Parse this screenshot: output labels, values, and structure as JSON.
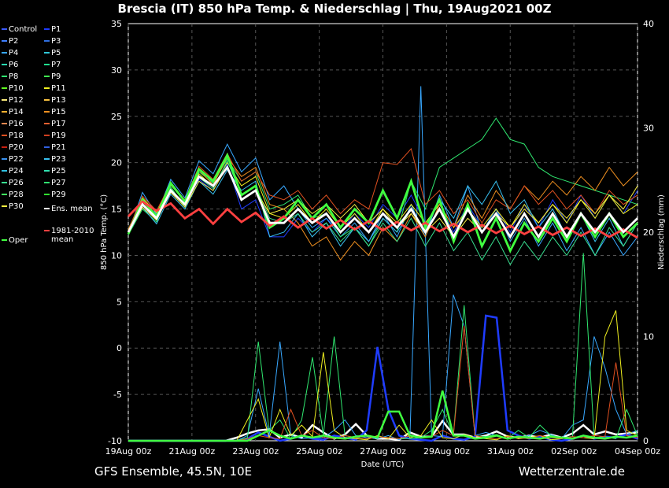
{
  "title": "Brescia  (IT)  850 hPa Temp. & Niederschlag | Thu, 19Aug2021 00Z",
  "footer": {
    "left": "GFS Ensemble, 45.5N, 10E",
    "right": "Wetterzentrale.de"
  },
  "chart_data": {
    "type": "line",
    "xlabel": "Date (UTC)",
    "ylabel": "850 hPa Temp. (°C)",
    "y2label": "Niederschlag (mm)",
    "ylim": [
      -10,
      35
    ],
    "y2lim": [
      0,
      40
    ],
    "xticks": [
      "19Aug 00z",
      "21Aug 00z",
      "23Aug 00z",
      "25Aug 00z",
      "27Aug 00z",
      "29Aug 00z",
      "31Aug 00z",
      "02Sep 00z",
      "04Sep 00z"
    ],
    "yticks": [
      -10,
      -5,
      0,
      5,
      10,
      15,
      20,
      25,
      30,
      35
    ],
    "y2ticks": [
      0,
      10,
      20,
      30,
      40
    ],
    "grid": true,
    "legend_position": "left",
    "legend": [
      {
        "name": "Control",
        "color": "#3b5bff"
      },
      {
        "name": "P1",
        "color": "#1f3cff"
      },
      {
        "name": "P2",
        "color": "#3f7fff"
      },
      {
        "name": "P3",
        "color": "#2f6fe0"
      },
      {
        "name": "P4",
        "color": "#38a8ff"
      },
      {
        "name": "P5",
        "color": "#30c8d8"
      },
      {
        "name": "P6",
        "color": "#28d8b0"
      },
      {
        "name": "P7",
        "color": "#20e090"
      },
      {
        "name": "P8",
        "color": "#30e870"
      },
      {
        "name": "P9",
        "color": "#40f050"
      },
      {
        "name": "P10",
        "color": "#60ff20"
      },
      {
        "name": "P11",
        "color": "#f0f020"
      },
      {
        "name": "P12",
        "color": "#f8e878"
      },
      {
        "name": "P13",
        "color": "#f8c040"
      },
      {
        "name": "P14",
        "color": "#f8b030"
      },
      {
        "name": "P15",
        "color": "#f09020"
      },
      {
        "name": "P16",
        "color": "#e88850"
      },
      {
        "name": "P17",
        "color": "#e86030"
      },
      {
        "name": "P18",
        "color": "#e05020"
      },
      {
        "name": "P19",
        "color": "#d04020"
      },
      {
        "name": "P20",
        "color": "#c82010"
      },
      {
        "name": "P21",
        "color": "#3060e0"
      },
      {
        "name": "P22",
        "color": "#3890f0"
      },
      {
        "name": "P23",
        "color": "#38c0f0"
      },
      {
        "name": "P24",
        "color": "#30c0e0"
      },
      {
        "name": "P25",
        "color": "#30e0b0"
      },
      {
        "name": "P26",
        "color": "#38e090"
      },
      {
        "name": "P27",
        "color": "#30e070"
      },
      {
        "name": "P28",
        "color": "#40f060"
      },
      {
        "name": "P29",
        "color": "#30e030"
      },
      {
        "name": "P30",
        "color": "#f8f040"
      },
      {
        "name": "Ens. mean",
        "color": "#ffffff"
      },
      {
        "name": "1981-2010 mean",
        "color": "#ff4040"
      },
      {
        "name": "Oper",
        "color": "#40ff40"
      }
    ],
    "series": [
      {
        "name": "Ens. mean",
        "color": "#ffffff",
        "values": [
          12.5,
          15.5,
          14.0,
          17.0,
          15.5,
          18.5,
          17.5,
          19.5,
          16.0,
          17.0,
          13.5,
          13.5,
          15.0,
          13.5,
          14.5,
          12.5,
          14.0,
          12.5,
          14.5,
          13.0,
          15.0,
          12.5,
          15.0,
          12.0,
          15.0,
          12.5,
          14.5,
          12.0,
          14.5,
          12.0,
          14.5,
          12.0,
          14.5,
          12.5,
          14.5,
          12.5,
          14.0
        ]
      },
      {
        "name": "1981-2010 mean",
        "color": "#ff4040",
        "values": [
          14.2,
          15.8,
          14.8,
          15.6,
          14.0,
          15.0,
          13.4,
          15.0,
          13.6,
          14.6,
          13.2,
          14.2,
          13.0,
          14.0,
          12.9,
          13.8,
          12.8,
          13.7,
          12.7,
          13.6,
          12.7,
          13.5,
          12.6,
          13.4,
          12.5,
          13.3,
          12.4,
          13.2,
          12.3,
          13.1,
          12.2,
          13.0,
          12.1,
          12.9,
          12.0,
          12.8,
          11.9
        ]
      },
      {
        "name": "Oper",
        "color": "#40ff40",
        "values": [
          12.3,
          16.0,
          14.2,
          17.8,
          15.8,
          19.3,
          18.0,
          20.8,
          16.5,
          17.5,
          13.0,
          14.0,
          16.0,
          14.0,
          15.5,
          13.0,
          15.0,
          13.5,
          17.0,
          14.0,
          18.0,
          13.0,
          16.0,
          11.5,
          15.5,
          11.0,
          14.0,
          10.5,
          13.5,
          11.5,
          14.0,
          11.5,
          14.5,
          12.0,
          14.5,
          12.0,
          13.5
        ]
      },
      {
        "name": "P1",
        "color": "#1f3cff",
        "values": [
          12.6,
          15.4,
          13.8,
          17.0,
          15.6,
          18.2,
          17.0,
          19.8,
          15.0,
          16.0,
          12.0,
          12.0,
          14.0,
          12.5,
          14.0,
          12.5,
          14.5,
          13.0,
          15.5,
          14.0,
          16.5,
          13.5,
          15.5,
          12.5,
          15.5,
          13.0,
          15.0,
          12.5,
          15.5,
          13.0,
          16.0,
          13.5,
          16.5,
          14.0,
          16.5,
          14.5,
          17.0
        ]
      },
      {
        "name": "P4",
        "color": "#38a8ff",
        "values": [
          12.4,
          16.8,
          14.4,
          18.2,
          16.2,
          20.2,
          18.8,
          22.0,
          19.0,
          20.5,
          16.0,
          17.5,
          15.0,
          13.0,
          14.0,
          12.0,
          13.5,
          11.5,
          14.5,
          12.0,
          15.5,
          12.0,
          16.5,
          13.0,
          17.5,
          12.5,
          15.0,
          11.5,
          14.0,
          11.0,
          13.5,
          10.5,
          13.0,
          10.0,
          12.5,
          10.0,
          12.0
        ]
      },
      {
        "name": "P8",
        "color": "#30e870",
        "values": [
          12.2,
          15.0,
          13.6,
          17.4,
          15.2,
          19.0,
          17.8,
          20.4,
          18.0,
          19.0,
          15.0,
          15.5,
          16.5,
          14.0,
          14.5,
          12.0,
          13.0,
          11.0,
          14.0,
          12.5,
          18.0,
          15.0,
          19.5,
          20.5,
          21.5,
          22.5,
          24.8,
          22.5,
          22.0,
          19.5,
          18.5,
          18.0,
          17.5,
          17.0,
          16.5,
          16.0,
          15.5
        ]
      },
      {
        "name": "P11",
        "color": "#f0f020",
        "values": [
          12.8,
          16.2,
          14.6,
          17.6,
          15.8,
          18.8,
          17.4,
          20.0,
          17.5,
          18.5,
          14.5,
          14.0,
          15.5,
          13.5,
          15.0,
          13.0,
          14.5,
          12.5,
          15.0,
          13.5,
          15.5,
          13.5,
          15.5,
          13.0,
          15.0,
          13.0,
          15.0,
          13.0,
          15.5,
          13.5,
          15.5,
          13.5,
          16.0,
          14.0,
          16.5,
          14.5,
          15.5
        ]
      },
      {
        "name": "P15",
        "color": "#f09020",
        "values": [
          12.5,
          15.8,
          14.2,
          17.2,
          15.4,
          19.2,
          17.6,
          20.6,
          18.5,
          19.5,
          15.5,
          15.0,
          13.5,
          11.0,
          12.0,
          9.5,
          11.5,
          10.0,
          13.0,
          11.5,
          14.5,
          12.0,
          15.5,
          13.0,
          16.5,
          14.0,
          17.0,
          15.0,
          17.5,
          16.0,
          18.0,
          16.5,
          18.5,
          17.0,
          19.5,
          17.5,
          19.0
        ]
      },
      {
        "name": "P18",
        "color": "#e05020",
        "values": [
          12.7,
          16.4,
          14.8,
          17.8,
          16.0,
          19.6,
          18.2,
          21.0,
          18.0,
          19.0,
          16.5,
          16.0,
          17.0,
          15.0,
          16.5,
          14.5,
          16.0,
          15.0,
          20.0,
          19.8,
          21.5,
          15.5,
          17.0,
          14.5,
          16.0,
          13.5,
          16.0,
          15.0,
          17.5,
          15.5,
          17.0,
          15.0,
          16.5,
          14.5,
          17.0,
          15.5,
          16.5
        ]
      },
      {
        "name": "P23",
        "color": "#38c0f0",
        "values": [
          12.3,
          15.2,
          13.4,
          16.6,
          15.0,
          18.0,
          16.6,
          19.2,
          17.0,
          18.0,
          12.0,
          12.5,
          14.5,
          12.0,
          13.5,
          11.0,
          13.0,
          11.5,
          14.0,
          12.5,
          15.0,
          12.5,
          16.0,
          14.0,
          17.5,
          15.5,
          18.0,
          14.5,
          16.0,
          13.0,
          15.0,
          12.0,
          14.5,
          11.5,
          14.0,
          11.0,
          13.5
        ]
      },
      {
        "name": "P26",
        "color": "#38e090",
        "values": [
          12.6,
          15.6,
          14.0,
          17.2,
          15.4,
          18.4,
          17.2,
          20.2,
          16.5,
          17.5,
          14.0,
          13.5,
          14.5,
          12.5,
          13.5,
          11.5,
          13.0,
          11.0,
          13.5,
          11.5,
          14.0,
          11.0,
          13.5,
          10.5,
          12.5,
          9.5,
          12.0,
          9.0,
          11.5,
          9.5,
          12.0,
          10.0,
          12.5,
          10.0,
          13.0,
          11.0,
          13.5
        ]
      },
      {
        "name": "P30",
        "color": "#f8f040",
        "values": [
          12.4,
          15.2,
          13.8,
          16.8,
          15.2,
          18.0,
          17.0,
          19.6,
          16.0,
          17.0,
          14.5,
          15.0,
          16.0,
          14.5,
          15.5,
          14.0,
          15.5,
          13.5,
          15.0,
          13.0,
          14.5,
          12.5,
          14.0,
          12.0,
          14.0,
          12.5,
          14.5,
          13.0,
          15.0,
          13.5,
          15.5,
          14.0,
          16.0,
          14.5,
          16.5,
          15.0,
          17.5
        ]
      }
    ],
    "precip_series": [
      {
        "name": "Ens. mean",
        "color": "#ffffff",
        "values": [
          0,
          0,
          0,
          0,
          0,
          0,
          0,
          0,
          0,
          0,
          0.3,
          0.7,
          1.0,
          1.1,
          0.3,
          0.6,
          0.3,
          1.5,
          0.8,
          0.2,
          0.6,
          1.6,
          0.5,
          0.2,
          0.2,
          0.1,
          0.8,
          0.4,
          0.4,
          1.9,
          0.6,
          0.6,
          0.3,
          0.5,
          0.9,
          0.4,
          0.3,
          0.5,
          0.3,
          0.6,
          0.3,
          0.7,
          1.5,
          0.6,
          0.9,
          0.6,
          0.7,
          0.8
        ]
      },
      {
        "name": "P1",
        "color": "#1f3cff",
        "values": [
          0,
          0,
          0,
          0,
          0,
          0,
          0,
          0,
          0,
          0,
          0,
          0.2,
          0.8,
          0.4,
          0,
          0.2,
          0.5,
          0.2,
          0.1,
          0.5,
          0.3,
          0.1,
          1.0,
          9.0,
          3.0,
          0.5,
          0.2,
          0.1,
          0,
          0.5,
          0.2,
          0.1,
          0.4,
          12.0,
          11.8,
          1.0,
          0.5,
          0.2,
          0.4,
          0.1,
          0,
          0.2,
          0.5,
          0.2,
          0.4,
          0.3,
          0.6,
          0.2
        ]
      },
      {
        "name": "P4",
        "color": "#38a8ff",
        "values": [
          0,
          0,
          0,
          0,
          0,
          0,
          0,
          0,
          0,
          0,
          0,
          0.5,
          5.0,
          0.5,
          9.5,
          0.5,
          0.2,
          0.3,
          0.3,
          1.0,
          2.0,
          0.5,
          0.3,
          0.2,
          0.5,
          0.1,
          0.5,
          34.0,
          0.5,
          0.4,
          14.0,
          11.0,
          0.5,
          0.8,
          0.5,
          0.2,
          0.3,
          0.5,
          1.0,
          0.6,
          0.2,
          1.5,
          2.0,
          10.0,
          7.0,
          3.0,
          0.6,
          1.0
        ]
      },
      {
        "name": "P8",
        "color": "#30e870",
        "values": [
          0,
          0,
          0,
          0,
          0,
          0,
          0,
          0,
          0,
          0,
          0,
          0.3,
          9.5,
          1.0,
          2.0,
          0.2,
          2.0,
          8.0,
          0.5,
          10.0,
          0.5,
          0.3,
          0.2,
          0.4,
          0.3,
          0.2,
          0.2,
          0.3,
          1.0,
          3.0,
          0.5,
          13.0,
          0.5,
          0.4,
          0.6,
          0.2,
          1.0,
          0.3,
          1.5,
          0.5,
          0.3,
          0.4,
          18.0,
          0.3,
          0.4,
          0.2,
          3.0,
          0.5
        ]
      },
      {
        "name": "P11",
        "color": "#f0f020",
        "values": [
          0,
          0,
          0,
          0,
          0,
          0,
          0,
          0,
          0,
          0,
          0,
          2.0,
          4.0,
          0.3,
          3.0,
          0.5,
          1.5,
          0.4,
          8.5,
          1.0,
          0.3,
          0.2,
          0.1,
          0.5,
          0.2,
          1.5,
          0.3,
          0.5,
          2.0,
          0.3,
          0.2,
          0.6,
          0.3,
          0.2,
          0.1,
          0.5,
          0.2,
          0.3,
          0.5,
          0.1,
          0.2,
          0.4,
          0.3,
          0.2,
          10.0,
          12.5,
          1.0,
          0.5
        ]
      },
      {
        "name": "P18",
        "color": "#e05020",
        "values": [
          0,
          0,
          0,
          0,
          0,
          0,
          0,
          0,
          0,
          0,
          0,
          0.2,
          0.5,
          0.3,
          0.2,
          3.0,
          0.5,
          1.0,
          0.3,
          0.2,
          0.5,
          0.3,
          0.2,
          0.4,
          0.3,
          0.2,
          0.5,
          0.3,
          0.4,
          1.0,
          0.5,
          11.0,
          0.5,
          0.3,
          0.2,
          0.4,
          0.3,
          0.2,
          0.5,
          0.3,
          0.2,
          0.4,
          0.3,
          0.5,
          0.4,
          7.5,
          0.5,
          0.3
        ]
      },
      {
        "name": "Oper",
        "color": "#40ff40",
        "values": [
          0,
          0,
          0,
          0,
          0,
          0,
          0,
          0,
          0,
          0,
          0,
          0,
          0.5,
          1.0,
          0.5,
          0.2,
          0.5,
          0.3,
          0.5,
          0.3,
          0.2,
          0.4,
          0.5,
          0.3,
          2.8,
          2.8,
          0.5,
          0.3,
          0.4,
          4.8,
          0.5,
          0.5,
          0.2,
          0.3,
          0.5,
          0.2,
          0.4,
          0.3,
          0.2,
          0.4,
          0.3,
          0.2,
          0.5,
          0.3,
          0.2,
          0.4,
          0.3,
          0.5
        ]
      }
    ]
  }
}
